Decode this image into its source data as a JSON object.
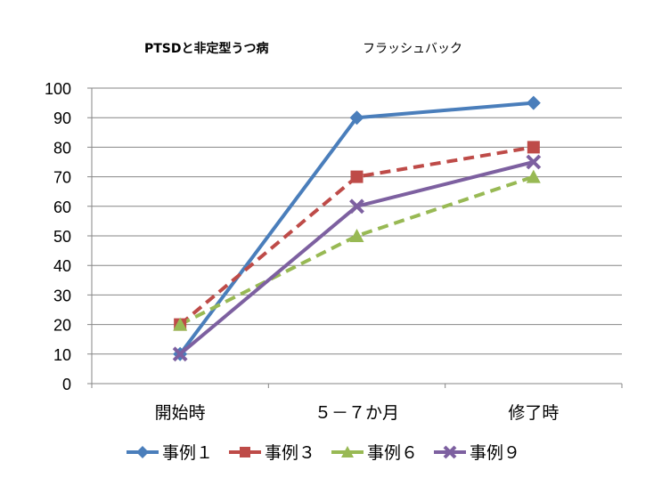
{
  "chart_data": {
    "type": "line",
    "title": "PTSDと非定型うつ病",
    "subtitle": "フラッシュバック",
    "categories": [
      "開始時",
      "５－７か月",
      "修了時"
    ],
    "ylim": [
      0,
      100
    ],
    "yticks": [
      0,
      10,
      20,
      30,
      40,
      50,
      60,
      70,
      80,
      90,
      100
    ],
    "grid": true,
    "legend_position": "bottom",
    "series": [
      {
        "name": "事例１",
        "values": [
          10,
          90,
          95
        ],
        "color": "#4a7ebb",
        "dash": false,
        "marker": "diamond"
      },
      {
        "name": "事例３",
        "values": [
          20,
          70,
          80
        ],
        "color": "#be4b48",
        "dash": true,
        "marker": "square"
      },
      {
        "name": "事例６",
        "values": [
          20,
          50,
          70
        ],
        "color": "#98b954",
        "dash": true,
        "marker": "triangle"
      },
      {
        "name": "事例９",
        "values": [
          10,
          60,
          75
        ],
        "color": "#7d60a0",
        "dash": false,
        "marker": "x"
      }
    ]
  }
}
